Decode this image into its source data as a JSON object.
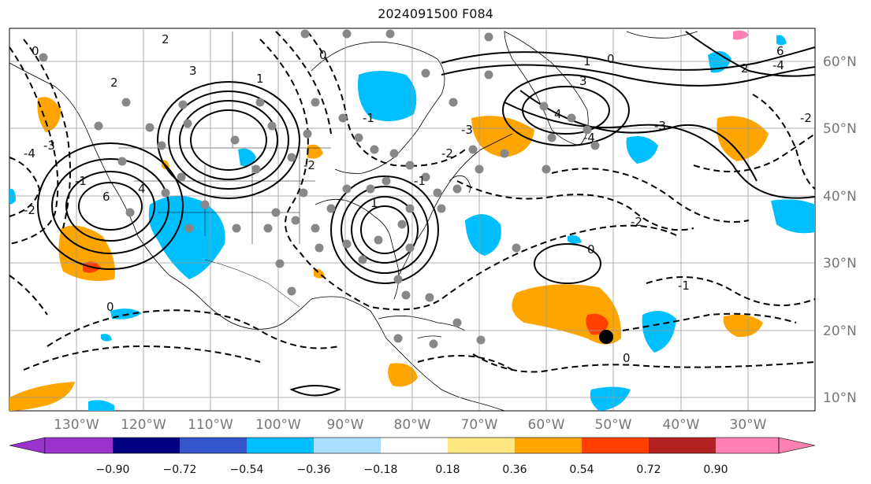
{
  "title": "2024091500 F084",
  "map": {
    "lon_labels": [
      "130°W",
      "120°W",
      "110°W",
      "100°W",
      "90°W",
      "80°W",
      "70°W",
      "60°W",
      "50°W",
      "40°W",
      "30°W"
    ],
    "lat_labels": [
      "60°N",
      "50°N",
      "40°N",
      "30°N",
      "20°N",
      "10°N"
    ],
    "contour_labels": [
      "0",
      "2",
      "-4",
      "-3",
      "-2",
      "-1",
      "6",
      "4",
      "2",
      "3",
      "1",
      "0",
      "-1",
      "-2",
      "0",
      "1",
      "-1",
      "-2",
      "-3",
      "3",
      "-4",
      "1",
      "0",
      "4",
      "6",
      "2",
      "-2",
      "0",
      "-1",
      "0",
      "-2",
      "-3",
      "-4"
    ],
    "marker": "storm-position"
  },
  "colorbar": {
    "ticks": [
      "−0.90",
      "−0.72",
      "−0.54",
      "−0.36",
      "−0.18",
      "0.18",
      "0.36",
      "0.54",
      "0.72",
      "0.90"
    ],
    "colors": [
      "#9933cc",
      "#000080",
      "#3355cc",
      "#00bfff",
      "#aadfff",
      "#ffffff",
      "#ffe680",
      "#ffa500",
      "#ff4000",
      "#b22222",
      "#ff80b3"
    ]
  }
}
